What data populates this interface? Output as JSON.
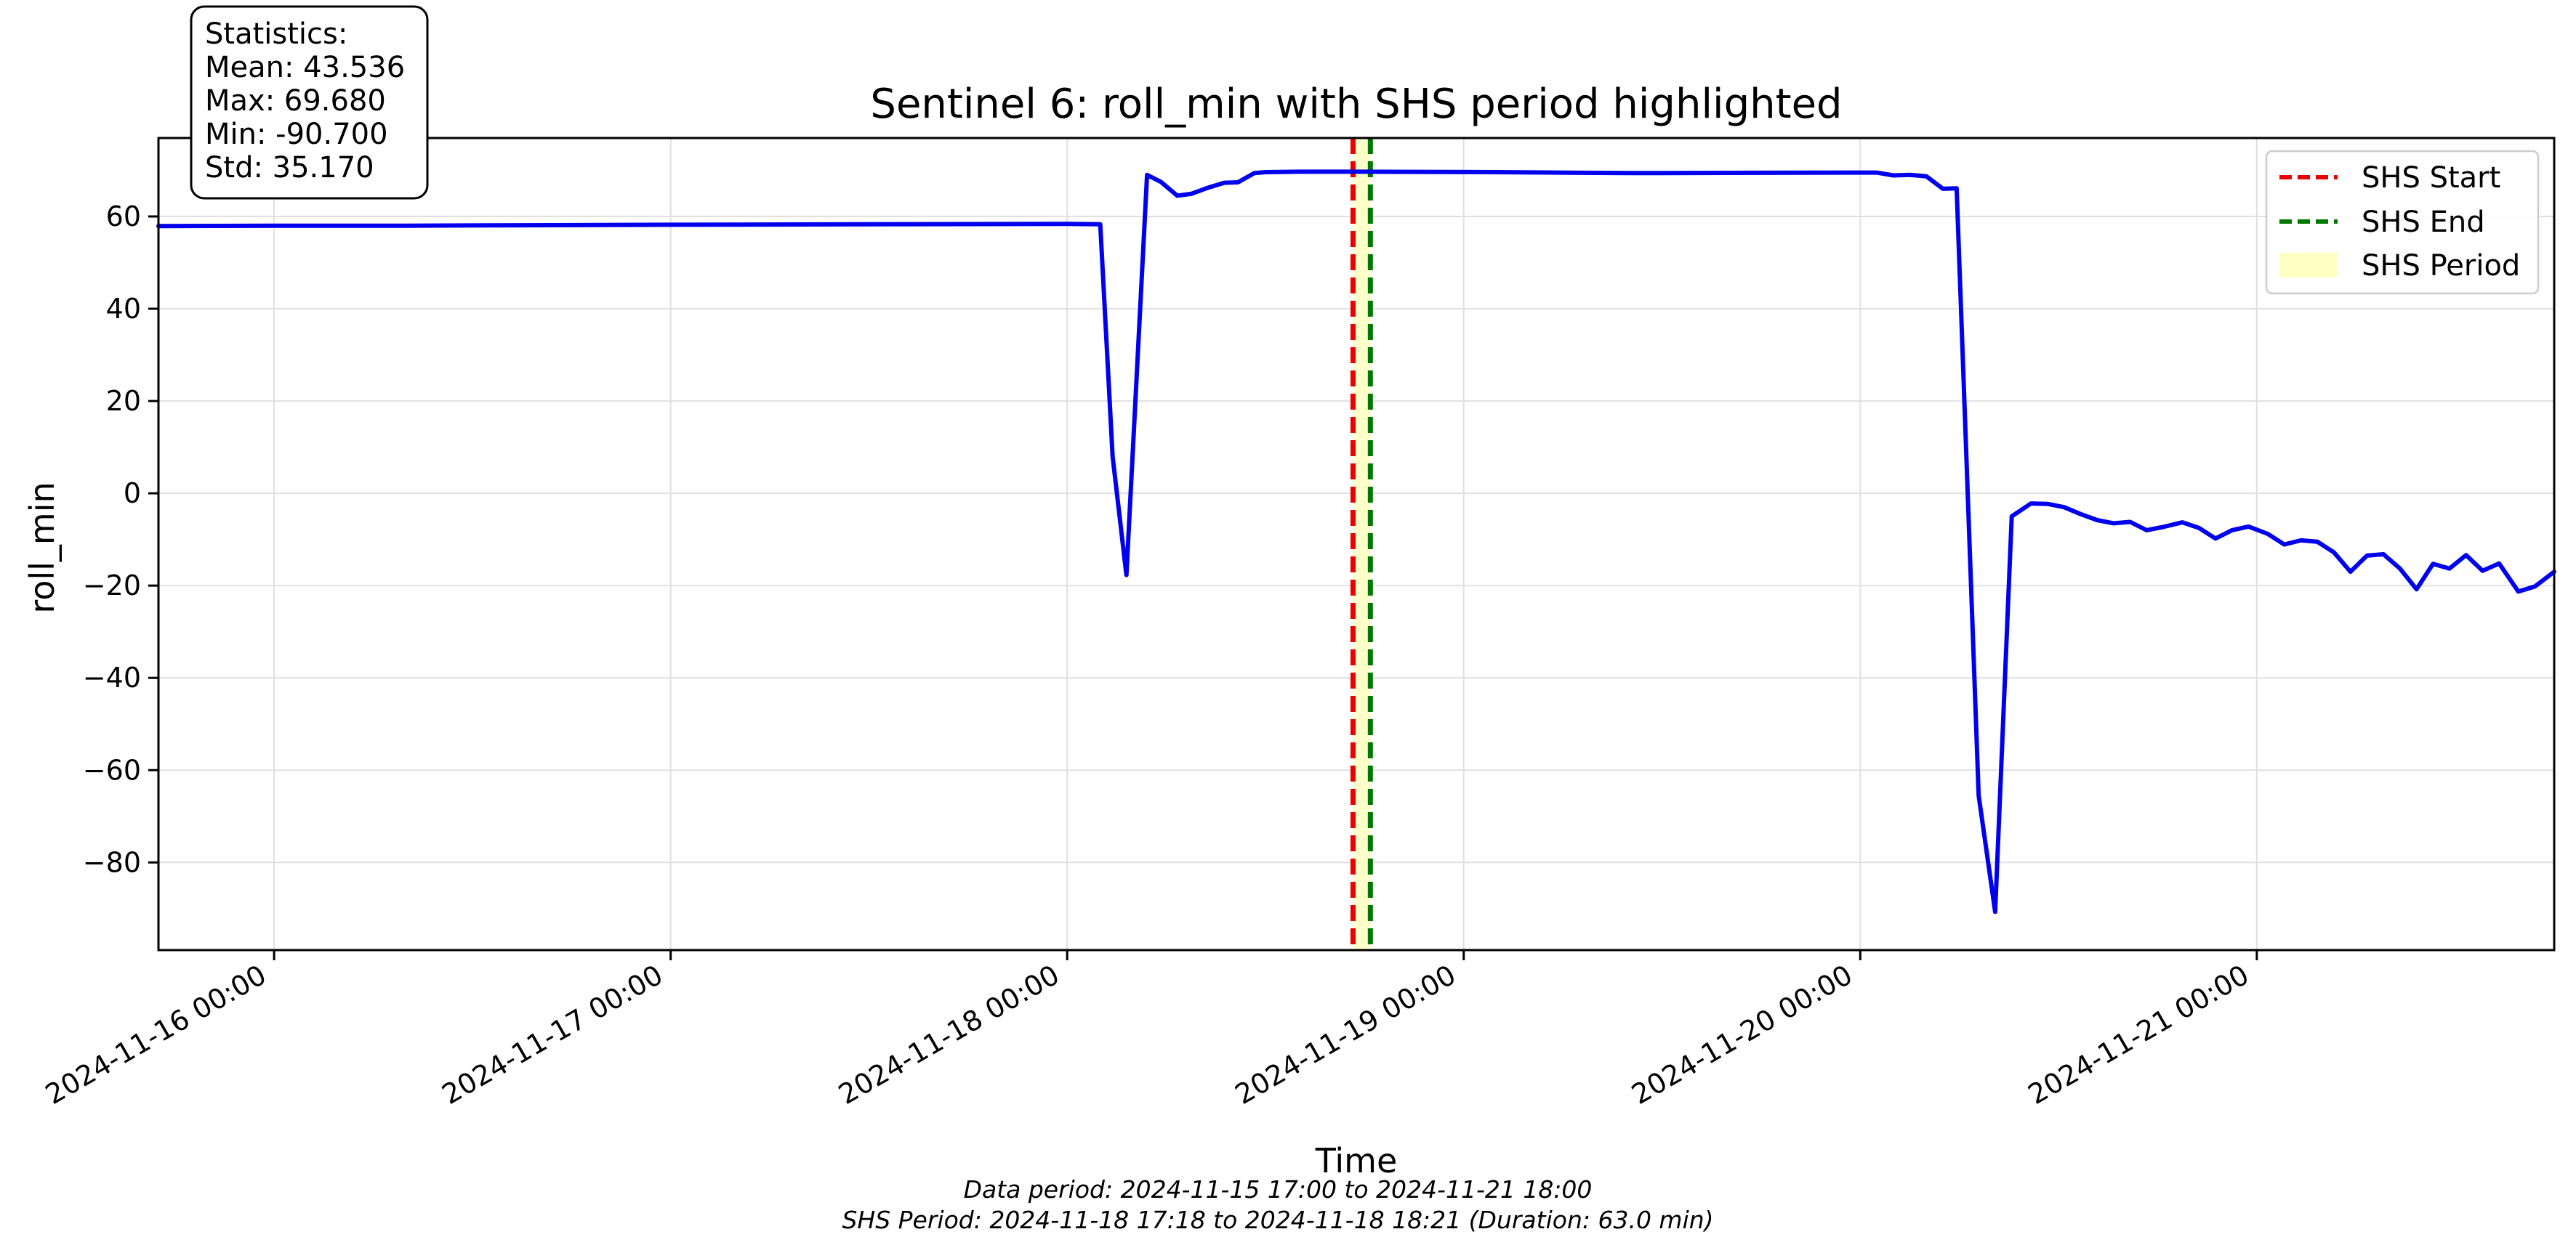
{
  "chart_data": {
    "type": "line",
    "title": "Sentinel 6: roll_min with SHS period highlighted",
    "xlabel": "Time",
    "ylabel": "roll_min",
    "xlim": [
      "2024-11-15 17:00",
      "2024-11-21 18:00"
    ],
    "ylim": [
      -99,
      77
    ],
    "x_ticks": [
      "2024-11-16 00:00",
      "2024-11-17 00:00",
      "2024-11-18 00:00",
      "2024-11-19 00:00",
      "2024-11-20 00:00",
      "2024-11-21 00:00"
    ],
    "y_ticks": [
      60,
      40,
      20,
      0,
      -20,
      -40,
      -60,
      -80
    ],
    "grid": true,
    "legend_position": "top-right",
    "series": [
      {
        "name": "roll_min",
        "color": "#0000ee",
        "points": [
          [
            "2024-11-15 17:00",
            57.9
          ],
          [
            "2024-11-16 00:00",
            58.0
          ],
          [
            "2024-11-16 08:00",
            58.0
          ],
          [
            "2024-11-17 00:00",
            58.2
          ],
          [
            "2024-11-17 12:00",
            58.3
          ],
          [
            "2024-11-18 00:00",
            58.4
          ],
          [
            "2024-11-18 02:00",
            58.3
          ],
          [
            "2024-11-18 02:45",
            8.0
          ],
          [
            "2024-11-18 03:35",
            -17.7
          ],
          [
            "2024-11-18 04:50",
            69.0
          ],
          [
            "2024-11-18 05:40",
            67.5
          ],
          [
            "2024-11-18 06:40",
            64.5
          ],
          [
            "2024-11-18 07:30",
            64.9
          ],
          [
            "2024-11-18 08:30",
            66.2
          ],
          [
            "2024-11-18 09:30",
            67.3
          ],
          [
            "2024-11-18 10:20",
            67.4
          ],
          [
            "2024-11-18 11:20",
            69.4
          ],
          [
            "2024-11-18 12:00",
            69.6
          ],
          [
            "2024-11-18 14:00",
            69.7
          ],
          [
            "2024-11-18 18:00",
            69.7
          ],
          [
            "2024-11-19 02:00",
            69.6
          ],
          [
            "2024-11-19 10:00",
            69.4
          ],
          [
            "2024-11-20 00:00",
            69.5
          ],
          [
            "2024-11-20 01:00",
            69.5
          ],
          [
            "2024-11-20 02:00",
            68.9
          ],
          [
            "2024-11-20 03:00",
            69.0
          ],
          [
            "2024-11-20 04:00",
            68.7
          ],
          [
            "2024-11-20 05:00",
            66.0
          ],
          [
            "2024-11-20 05:50",
            66.1
          ],
          [
            "2024-11-20 07:10",
            -65.5
          ],
          [
            "2024-11-20 08:10",
            -90.7
          ],
          [
            "2024-11-20 09:10",
            -5.0
          ],
          [
            "2024-11-20 10:20",
            -2.2
          ],
          [
            "2024-11-20 11:20",
            -2.3
          ],
          [
            "2024-11-20 12:20",
            -3.0
          ],
          [
            "2024-11-20 13:20",
            -4.5
          ],
          [
            "2024-11-20 14:20",
            -5.8
          ],
          [
            "2024-11-20 15:20",
            -6.5
          ],
          [
            "2024-11-20 16:20",
            -6.2
          ],
          [
            "2024-11-20 17:20",
            -8.0
          ],
          [
            "2024-11-20 18:20",
            -7.3
          ],
          [
            "2024-11-20 19:30",
            -6.3
          ],
          [
            "2024-11-20 20:30",
            -7.5
          ],
          [
            "2024-11-20 21:30",
            -9.8
          ],
          [
            "2024-11-20 22:30",
            -8.0
          ],
          [
            "2024-11-20 23:30",
            -7.2
          ],
          [
            "2024-11-21 00:40",
            -8.8
          ],
          [
            "2024-11-21 01:40",
            -11.1
          ],
          [
            "2024-11-21 02:40",
            -10.2
          ],
          [
            "2024-11-21 03:40",
            -10.5
          ],
          [
            "2024-11-21 04:40",
            -12.8
          ],
          [
            "2024-11-21 05:40",
            -17.0
          ],
          [
            "2024-11-21 06:40",
            -13.5
          ],
          [
            "2024-11-21 07:40",
            -13.2
          ],
          [
            "2024-11-21 08:40",
            -16.3
          ],
          [
            "2024-11-21 09:40",
            -20.8
          ],
          [
            "2024-11-21 10:40",
            -15.3
          ],
          [
            "2024-11-21 11:40",
            -16.3
          ],
          [
            "2024-11-21 12:40",
            -13.4
          ],
          [
            "2024-11-21 13:40",
            -16.8
          ],
          [
            "2024-11-21 14:40",
            -15.2
          ],
          [
            "2024-11-21 15:50",
            -21.3
          ],
          [
            "2024-11-21 16:50",
            -20.2
          ],
          [
            "2024-11-21 18:00",
            -17.0
          ]
        ]
      }
    ],
    "shs": {
      "start": "2024-11-18 17:18",
      "end": "2024-11-18 18:21",
      "start_color": "#ee0000",
      "end_color": "#007700",
      "period_color": "#ffffc4"
    },
    "legend": [
      {
        "label": "SHS Start",
        "style": "dashed",
        "color": "#ee0000"
      },
      {
        "label": "SHS End",
        "style": "dashed",
        "color": "#007700"
      },
      {
        "label": "SHS Period",
        "style": "patch",
        "color": "#ffffc4"
      }
    ],
    "stats": {
      "heading": "Statistics:",
      "lines": [
        "Mean: 43.536",
        "Max: 69.680",
        "Min: -90.700",
        "Std: 35.170"
      ]
    },
    "footnotes": [
      "Data period: 2024-11-15 17:00 to 2024-11-21 18:00",
      "SHS Period: 2024-11-18 17:18 to 2024-11-18 18:21 (Duration: 63.0 min)"
    ]
  }
}
